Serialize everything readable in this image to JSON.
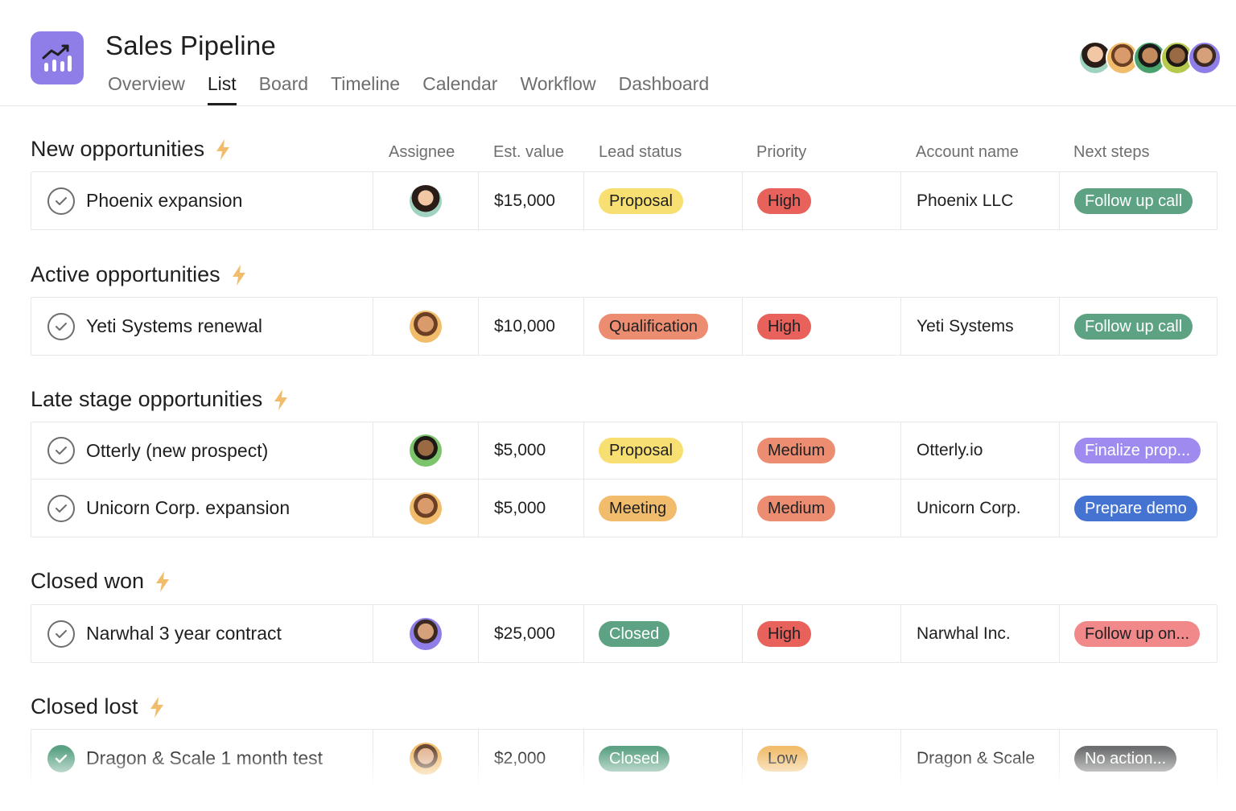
{
  "app": {
    "title": "Sales Pipeline",
    "icon": "trend-chart-icon",
    "accent": "#8f7ee8"
  },
  "tabs": [
    {
      "label": "Overview",
      "active": false
    },
    {
      "label": "List",
      "active": true
    },
    {
      "label": "Board",
      "active": false
    },
    {
      "label": "Timeline",
      "active": false
    },
    {
      "label": "Calendar",
      "active": false
    },
    {
      "label": "Workflow",
      "active": false
    },
    {
      "label": "Dashboard",
      "active": false
    }
  ],
  "members": [
    "member-avatar-1",
    "member-avatar-2",
    "member-avatar-3",
    "member-avatar-4",
    "member-avatar-5"
  ],
  "columns": {
    "assignee": "Assignee",
    "value": "Est. value",
    "lead": "Lead status",
    "priority": "Priority",
    "account": "Account name",
    "next": "Next steps"
  },
  "sections": [
    {
      "title": "New opportunities",
      "rows": [
        {
          "task": "Phoenix expansion",
          "done": false,
          "value": "$15,000",
          "lead": "Proposal",
          "lead_color": "yellow",
          "priority": "High",
          "priority_color": "red",
          "account": "Phoenix LLC",
          "next": "Follow up call",
          "next_color": "green"
        }
      ]
    },
    {
      "title": "Active opportunities",
      "rows": [
        {
          "task": "Yeti Systems renewal",
          "done": false,
          "value": "$10,000",
          "lead": "Qualification",
          "lead_color": "orange",
          "priority": "High",
          "priority_color": "red",
          "account": "Yeti Systems",
          "next": "Follow up call",
          "next_color": "green"
        }
      ]
    },
    {
      "title": "Late stage opportunities",
      "rows": [
        {
          "task": "Otterly (new prospect)",
          "done": false,
          "value": "$5,000",
          "lead": "Proposal",
          "lead_color": "yellow",
          "priority": "Medium",
          "priority_color": "salmon",
          "account": "Otterly.io",
          "next": "Finalize prop...",
          "next_color": "purple"
        },
        {
          "task": "Unicorn Corp. expansion",
          "done": false,
          "value": "$5,000",
          "lead": "Meeting",
          "lead_color": "gold",
          "priority": "Medium",
          "priority_color": "salmon",
          "account": "Unicorn Corp.",
          "next": "Prepare demo",
          "next_color": "blue"
        }
      ]
    },
    {
      "title": "Closed won",
      "rows": [
        {
          "task": "Narwhal 3 year contract",
          "done": false,
          "value": "$25,000",
          "lead": "Closed",
          "lead_color": "green",
          "priority": "High",
          "priority_color": "red",
          "account": "Narwhal Inc.",
          "next": "Follow up on...",
          "next_color": "pink"
        }
      ]
    },
    {
      "title": "Closed lost",
      "rows": [
        {
          "task": "Dragon & Scale 1 month test",
          "done": true,
          "value": "$2,000",
          "lead": "Closed",
          "lead_color": "green",
          "priority": "Low",
          "priority_color": "gold",
          "account": "Dragon & Scale",
          "next": "No action...",
          "next_color": "gray"
        }
      ]
    }
  ]
}
